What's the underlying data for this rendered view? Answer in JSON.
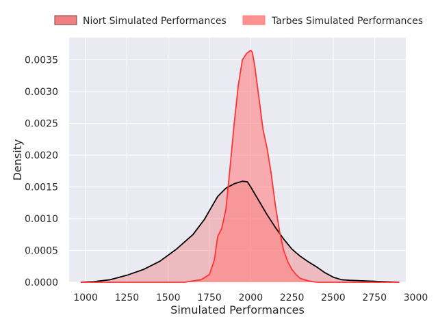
{
  "chart_data": {
    "type": "area",
    "title": "",
    "xlabel": "Simulated Performances",
    "ylabel": "Density",
    "xlim": [
      900,
      2940
    ],
    "ylim": [
      0,
      0.00385
    ],
    "x_ticks": [
      1000,
      1250,
      1500,
      1750,
      2000,
      2250,
      2500,
      2750,
      3000
    ],
    "x_tick_labels": [
      "1000",
      "1250",
      "1500",
      "1750",
      "2000",
      "2250",
      "2500",
      "2750",
      "3000"
    ],
    "y_ticks": [
      0,
      0.0005,
      0.001,
      0.0015,
      0.002,
      0.0025,
      0.003,
      0.0035
    ],
    "y_tick_labels": [
      "0.0000",
      "0.0005",
      "0.0010",
      "0.0015",
      "0.0020",
      "0.0025",
      "0.0030",
      "0.0035"
    ],
    "grid": true,
    "legend_position": "top",
    "series": [
      {
        "name": "Niort Simulated Performances",
        "fill_color": "#f08080",
        "line_color": "#000000",
        "x": [
          970,
          1050,
          1150,
          1250,
          1350,
          1450,
          1550,
          1650,
          1720,
          1760,
          1800,
          1850,
          1900,
          1950,
          1980,
          2000,
          2050,
          2100,
          2150,
          2200,
          2250,
          2300,
          2350,
          2400,
          2450,
          2500,
          2550,
          2600,
          2700,
          2800,
          2900
        ],
        "y": [
          0.0,
          1e-05,
          4e-05,
          0.00011,
          0.0002,
          0.00033,
          0.00052,
          0.00075,
          0.00099,
          0.00117,
          0.00135,
          0.00148,
          0.00155,
          0.00159,
          0.00158,
          0.0015,
          0.00128,
          0.00106,
          0.00086,
          0.00068,
          0.00052,
          0.00041,
          0.00032,
          0.00024,
          0.00015,
          8e-05,
          4e-05,
          3e-05,
          2e-05,
          1e-05,
          0.0
        ]
      },
      {
        "name": "Tarbes Simulated Performances",
        "fill_color": "#ff8080",
        "line_color": "#ff3333",
        "x": [
          970,
          1500,
          1600,
          1650,
          1700,
          1750,
          1780,
          1800,
          1825,
          1850,
          1875,
          1900,
          1925,
          1950,
          1975,
          2000,
          2010,
          2025,
          2050,
          2075,
          2100,
          2125,
          2150,
          2175,
          2200,
          2225,
          2250,
          2275,
          2300,
          2350,
          2400,
          2500,
          2900
        ],
        "y": [
          0.0,
          0.0,
          0.0,
          2e-05,
          4e-05,
          0.00012,
          0.00035,
          0.00072,
          0.00085,
          0.00115,
          0.0018,
          0.0025,
          0.0031,
          0.0035,
          0.0036,
          0.00365,
          0.00362,
          0.0034,
          0.0029,
          0.0024,
          0.0021,
          0.0017,
          0.0012,
          0.0008,
          0.0005,
          0.00032,
          0.0002,
          0.00012,
          6e-05,
          2e-05,
          0.0,
          0.0,
          0.0
        ]
      }
    ]
  }
}
